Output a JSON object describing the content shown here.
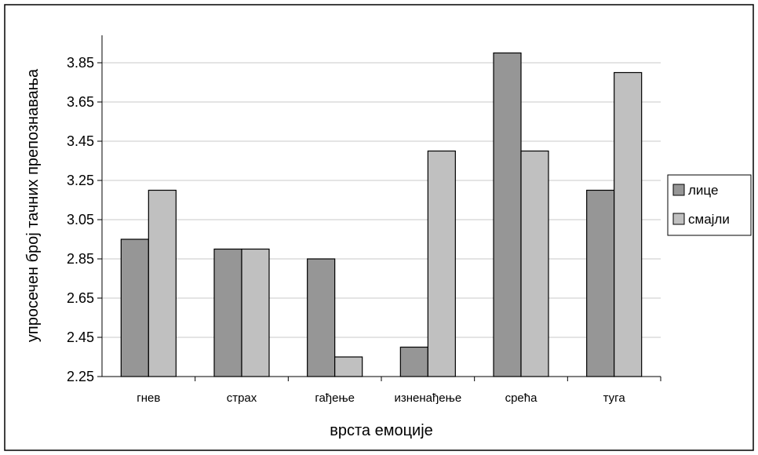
{
  "chart_data": {
    "type": "bar",
    "xlabel": "врста емоције",
    "ylabel": "упросечен број тачних препознавања",
    "ylim": [
      2.25,
      4.05
    ],
    "y_ticks": [
      "2.25",
      "2.45",
      "2.65",
      "2.85",
      "3.05",
      "3.25",
      "3.45",
      "3.65",
      "3.85"
    ],
    "categories": [
      "гнев",
      "страх",
      "гађење",
      "изненађење",
      "срећа",
      "туга"
    ],
    "grid": "horizontal",
    "legend_position": "right",
    "series": [
      {
        "name": "лице",
        "color": "#969696",
        "values": [
          2.95,
          2.9,
          2.85,
          2.4,
          3.9,
          3.2
        ]
      },
      {
        "name": "смајли",
        "color": "#c0c0c0",
        "values": [
          3.2,
          2.9,
          2.35,
          3.4,
          3.4,
          3.8
        ]
      }
    ]
  }
}
